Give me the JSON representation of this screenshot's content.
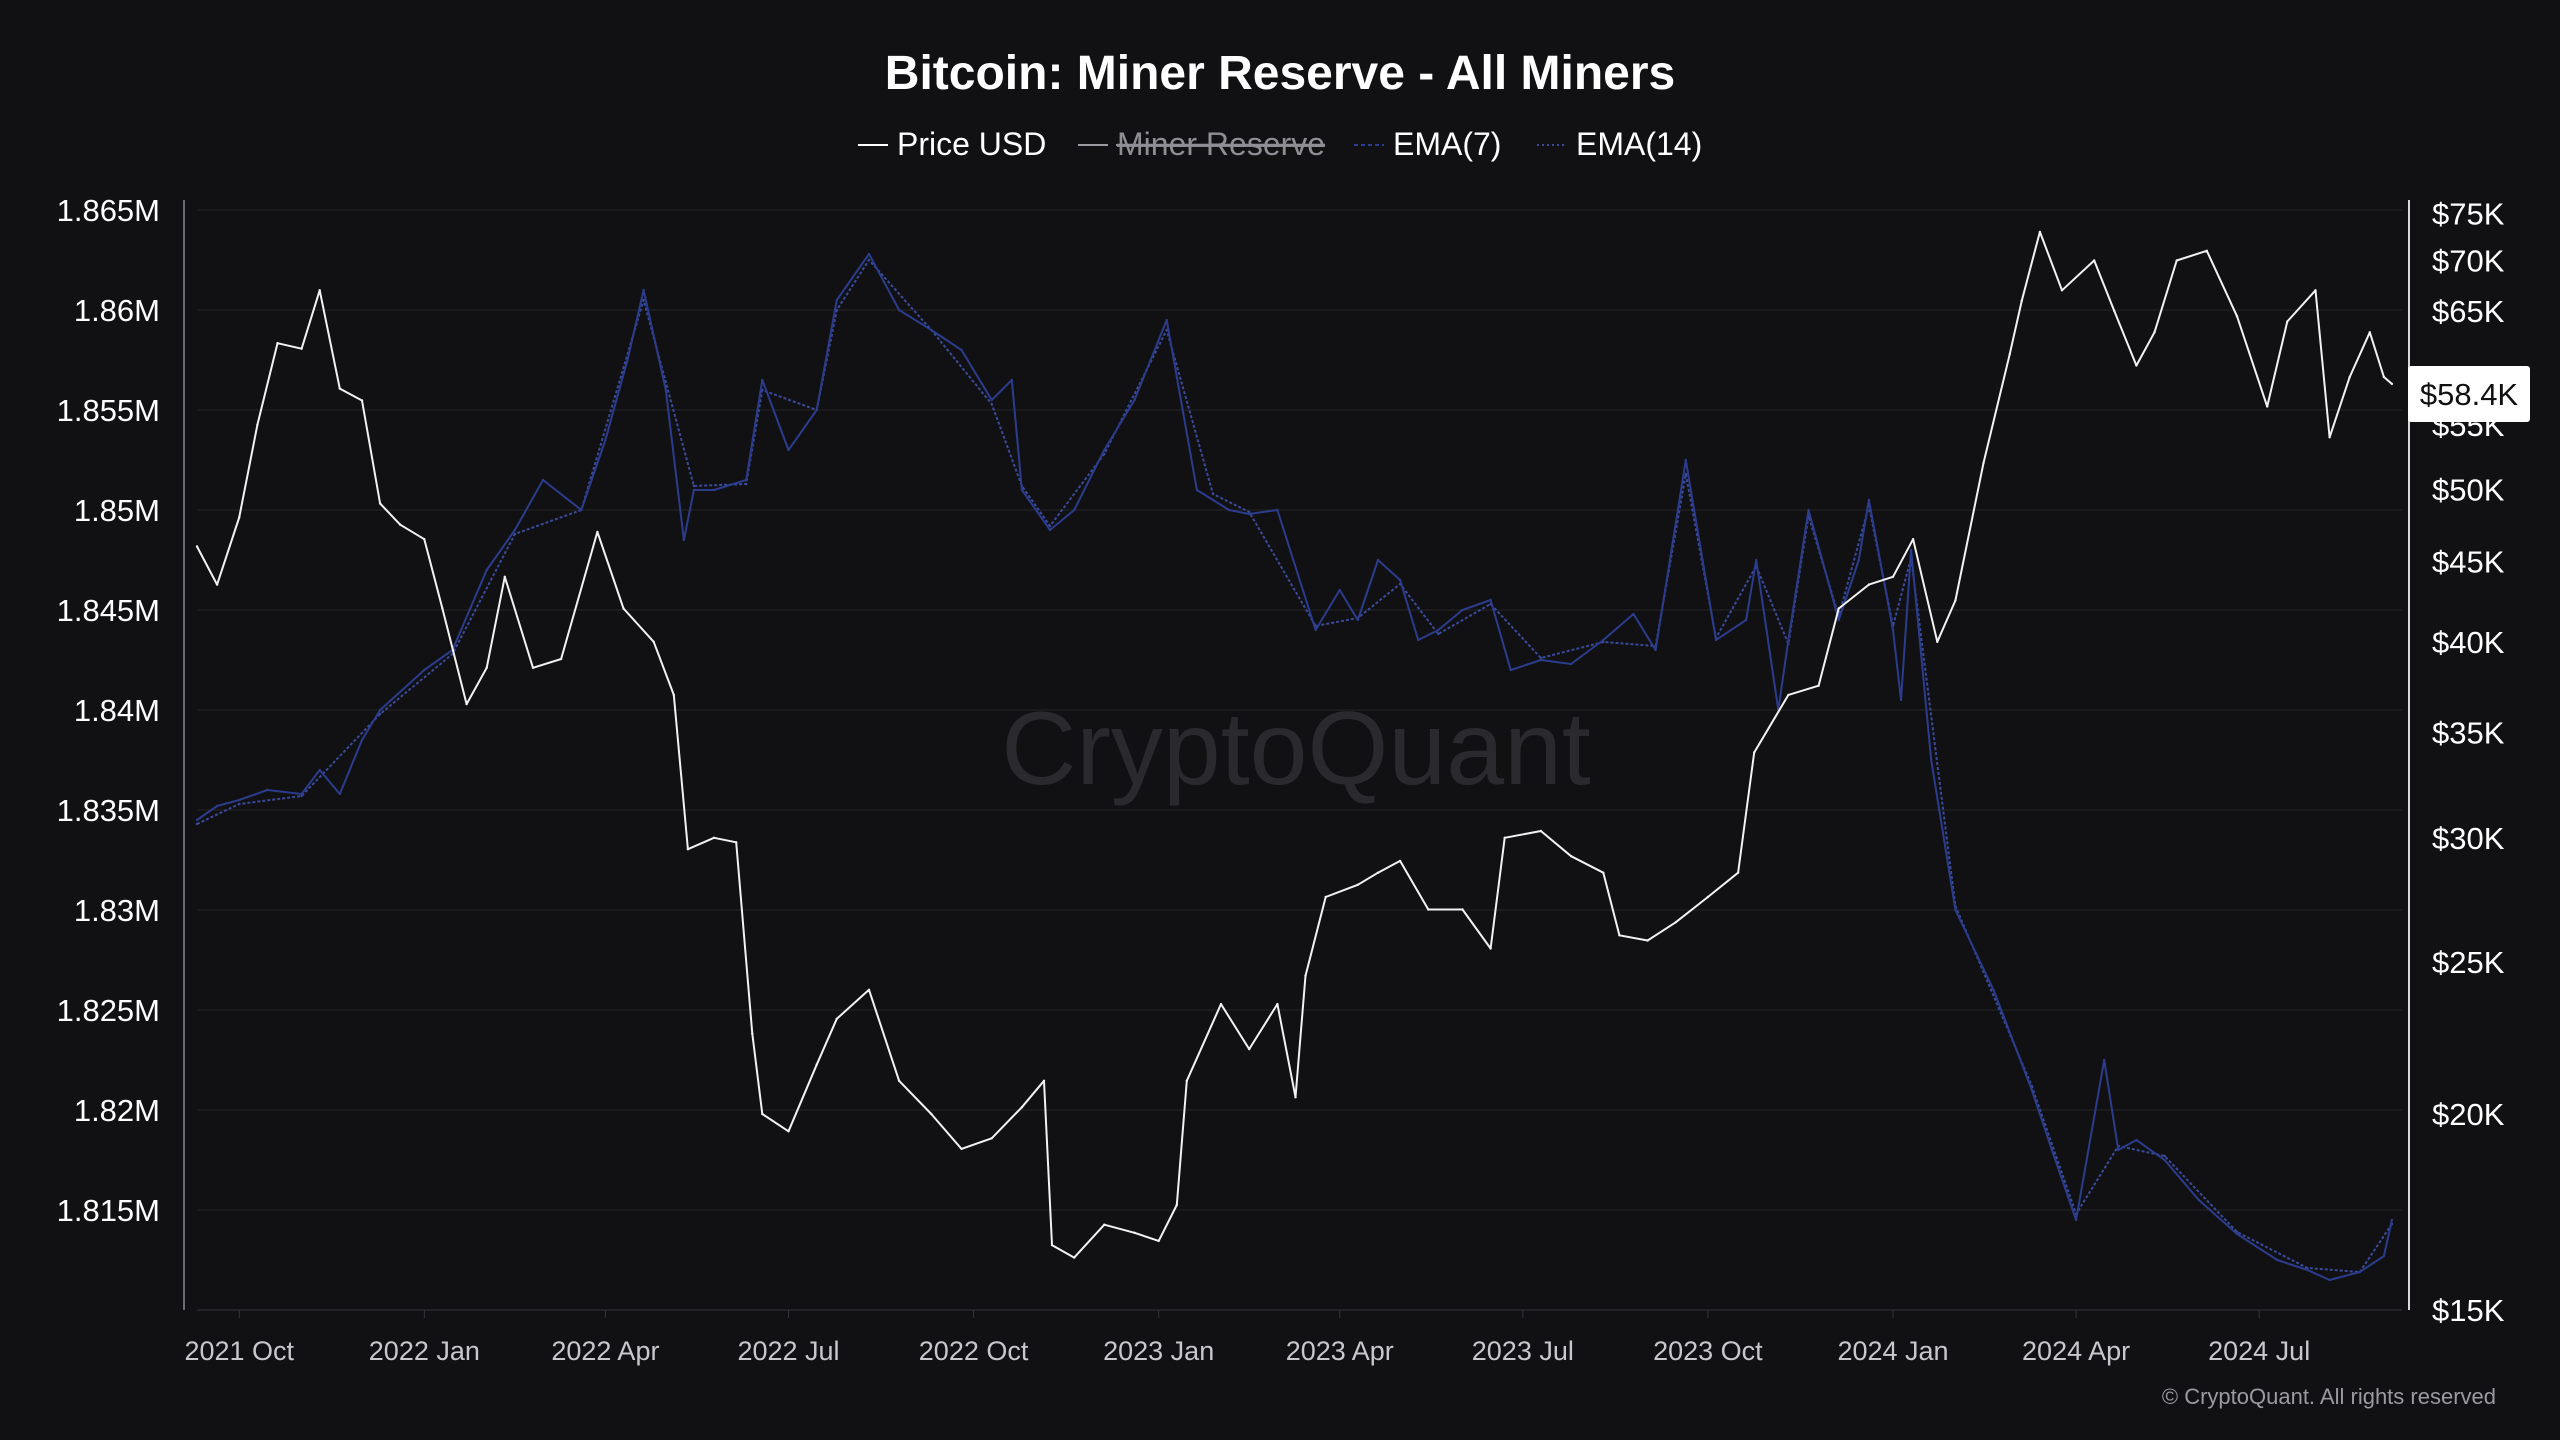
{
  "chart_data": {
    "type": "line",
    "title": "Bitcoin: Miner Reserve - All Miners",
    "legend": [
      {
        "name": "Price USD",
        "color": "#ffffff",
        "style": "solid",
        "hidden": false
      },
      {
        "name": "Miner Reserve",
        "color": "#9a9aa0",
        "style": "solid",
        "hidden": true
      },
      {
        "name": "EMA(7)",
        "color": "#2c3c8c",
        "style": "dashed",
        "hidden": false
      },
      {
        "name": "EMA(14)",
        "color": "#3a4a9a",
        "style": "dotted",
        "hidden": false
      }
    ],
    "x_ticks": [
      "2021 Oct",
      "2022 Jan",
      "2022 Apr",
      "2022 Jul",
      "2022 Oct",
      "2023 Jan",
      "2023 Apr",
      "2023 Jul",
      "2023 Oct",
      "2024 Jan",
      "2024 Apr",
      "2024 Jul"
    ],
    "x_range": [
      "2021-09-10",
      "2024-09-10"
    ],
    "y_left": {
      "label": "",
      "ticks": [
        "1.815M",
        "1.82M",
        "1.825M",
        "1.83M",
        "1.835M",
        "1.84M",
        "1.845M",
        "1.85M",
        "1.855M",
        "1.86M",
        "1.865M"
      ],
      "values": [
        1815000,
        1820000,
        1825000,
        1830000,
        1835000,
        1840000,
        1845000,
        1850000,
        1855000,
        1860000,
        1865000
      ],
      "range": [
        1810000,
        1865500
      ]
    },
    "y_right": {
      "label": "",
      "scale": "log",
      "ticks": [
        "$15K",
        "$20K",
        "$25K",
        "$30K",
        "$35K",
        "$40K",
        "$45K",
        "$50K",
        "$55K",
        "$65K",
        "$70K",
        "$75K"
      ],
      "values": [
        15000,
        20000,
        25000,
        30000,
        35000,
        40000,
        45000,
        50000,
        55000,
        65000,
        70000,
        75000
      ],
      "range": [
        15000,
        76500
      ]
    },
    "current_price_label": "$58.4K",
    "grid": true,
    "series": [
      {
        "name": "Price USD",
        "axis": "right",
        "x": [
          "2021-09-10",
          "2021-09-20",
          "2021-10-01",
          "2021-10-10",
          "2021-10-20",
          "2021-11-01",
          "2021-11-10",
          "2021-11-20",
          "2021-12-01",
          "2021-12-10",
          "2021-12-20",
          "2022-01-01",
          "2022-01-10",
          "2022-01-22",
          "2022-02-01",
          "2022-02-10",
          "2022-02-24",
          "2022-03-10",
          "2022-03-28",
          "2022-04-10",
          "2022-04-25",
          "2022-05-05",
          "2022-05-12",
          "2022-05-25",
          "2022-06-05",
          "2022-06-13",
          "2022-06-18",
          "2022-07-01",
          "2022-07-15",
          "2022-07-25",
          "2022-08-10",
          "2022-08-25",
          "2022-09-10",
          "2022-09-25",
          "2022-10-10",
          "2022-10-25",
          "2022-11-05",
          "2022-11-09",
          "2022-11-20",
          "2022-12-05",
          "2022-12-20",
          "2023-01-01",
          "2023-01-10",
          "2023-01-15",
          "2023-02-01",
          "2023-02-15",
          "2023-03-01",
          "2023-03-10",
          "2023-03-15",
          "2023-03-25",
          "2023-04-10",
          "2023-04-20",
          "2023-05-01",
          "2023-05-15",
          "2023-06-01",
          "2023-06-15",
          "2023-06-22",
          "2023-07-10",
          "2023-07-25",
          "2023-08-10",
          "2023-08-18",
          "2023-09-01",
          "2023-09-15",
          "2023-10-01",
          "2023-10-16",
          "2023-10-24",
          "2023-11-10",
          "2023-11-25",
          "2023-12-05",
          "2023-12-20",
          "2024-01-01",
          "2024-01-11",
          "2024-01-23",
          "2024-02-01",
          "2024-02-15",
          "2024-02-28",
          "2024-03-05",
          "2024-03-14",
          "2024-03-25",
          "2024-04-10",
          "2024-04-20",
          "2024-05-01",
          "2024-05-10",
          "2024-05-21",
          "2024-06-05",
          "2024-06-20",
          "2024-07-05",
          "2024-07-15",
          "2024-07-29",
          "2024-08-05",
          "2024-08-15",
          "2024-08-25",
          "2024-09-01",
          "2024-09-05"
        ],
        "values": [
          46000,
          43500,
          48000,
          55000,
          62000,
          61500,
          67000,
          58000,
          57000,
          49000,
          47500,
          46500,
          42000,
          36500,
          38500,
          44000,
          38500,
          39000,
          47000,
          42000,
          40000,
          37000,
          29500,
          30000,
          29800,
          22500,
          20000,
          19500,
          21500,
          23000,
          24000,
          21000,
          20000,
          19000,
          19300,
          20200,
          21000,
          16500,
          16200,
          17000,
          16800,
          16600,
          17500,
          21000,
          23500,
          22000,
          23500,
          20500,
          24500,
          27500,
          28000,
          28500,
          29000,
          27000,
          27000,
          25500,
          30000,
          30300,
          29200,
          28500,
          26000,
          25800,
          26500,
          27500,
          28500,
          34000,
          37000,
          37500,
          42000,
          43500,
          44000,
          46500,
          40000,
          42500,
          52000,
          61000,
          66000,
          73000,
          67000,
          70000,
          65000,
          60000,
          63000,
          70000,
          71000,
          64500,
          56500,
          64000,
          67000,
          54000,
          59000,
          63000,
          59000,
          58400
        ]
      },
      {
        "name": "EMA(7)",
        "axis": "left",
        "x": [
          "2021-09-10",
          "2021-09-20",
          "2021-10-01",
          "2021-10-15",
          "2021-11-01",
          "2021-11-10",
          "2021-11-20",
          "2021-12-01",
          "2021-12-10",
          "2022-01-01",
          "2022-01-15",
          "2022-02-01",
          "2022-02-15",
          "2022-03-01",
          "2022-03-20",
          "2022-04-01",
          "2022-04-12",
          "2022-04-20",
          "2022-05-01",
          "2022-05-10",
          "2022-05-15",
          "2022-05-25",
          "2022-06-10",
          "2022-06-18",
          "2022-07-01",
          "2022-07-15",
          "2022-07-25",
          "2022-08-10",
          "2022-08-25",
          "2022-09-10",
          "2022-09-25",
          "2022-10-10",
          "2022-10-20",
          "2022-10-25",
          "2022-11-08",
          "2022-11-20",
          "2022-12-05",
          "2022-12-20",
          "2023-01-05",
          "2023-01-20",
          "2023-01-28",
          "2023-02-05",
          "2023-02-15",
          "2023-03-01",
          "2023-03-20",
          "2023-04-01",
          "2023-04-10",
          "2023-04-20",
          "2023-05-01",
          "2023-05-10",
          "2023-05-20",
          "2023-06-01",
          "2023-06-15",
          "2023-06-25",
          "2023-07-10",
          "2023-07-25",
          "2023-08-10",
          "2023-08-25",
          "2023-09-05",
          "2023-09-20",
          "2023-10-05",
          "2023-10-20",
          "2023-10-25",
          "2023-11-05",
          "2023-11-10",
          "2023-11-20",
          "2023-12-05",
          "2023-12-15",
          "2023-12-20",
          "2024-01-01",
          "2024-01-05",
          "2024-01-10",
          "2024-01-20",
          "2024-02-01",
          "2024-02-20",
          "2024-03-10",
          "2024-03-20",
          "2024-04-01",
          "2024-04-15",
          "2024-04-22",
          "2024-05-01",
          "2024-05-15",
          "2024-06-01",
          "2024-06-20",
          "2024-07-10",
          "2024-07-25",
          "2024-08-05",
          "2024-08-20",
          "2024-09-01",
          "2024-09-05"
        ],
        "values": [
          1834500,
          1835200,
          1835500,
          1836000,
          1835800,
          1837000,
          1835800,
          1838500,
          1840000,
          1842000,
          1843000,
          1847000,
          1849000,
          1851500,
          1850000,
          1853500,
          1857500,
          1861000,
          1856000,
          1848500,
          1851000,
          1851000,
          1851500,
          1856500,
          1853000,
          1855000,
          1860500,
          1862800,
          1860000,
          1859000,
          1858000,
          1855500,
          1856500,
          1851000,
          1849000,
          1850000,
          1853000,
          1855500,
          1859500,
          1851000,
          1850500,
          1850000,
          1849800,
          1850000,
          1844000,
          1846000,
          1844500,
          1847500,
          1846500,
          1843500,
          1844000,
          1845000,
          1845500,
          1842000,
          1842500,
          1842300,
          1843500,
          1844800,
          1843000,
          1852500,
          1843500,
          1844500,
          1847500,
          1840000,
          1843500,
          1850000,
          1844500,
          1847500,
          1850500,
          1844000,
          1840500,
          1848000,
          1837500,
          1830000,
          1826000,
          1821000,
          1818000,
          1814500,
          1822500,
          1818000,
          1818500,
          1817500,
          1815500,
          1813800,
          1812500,
          1812000,
          1811500,
          1811900,
          1812700,
          1814500
        ]
      },
      {
        "name": "EMA(14)",
        "axis": "left",
        "x": [
          "2021-09-10",
          "2021-10-01",
          "2021-11-01",
          "2021-12-10",
          "2022-01-15",
          "2022-02-15",
          "2022-03-20",
          "2022-04-20",
          "2022-05-15",
          "2022-06-10",
          "2022-06-18",
          "2022-07-15",
          "2022-07-25",
          "2022-08-10",
          "2022-09-10",
          "2022-10-10",
          "2022-10-25",
          "2022-11-08",
          "2022-12-05",
          "2023-01-05",
          "2023-01-28",
          "2023-02-15",
          "2023-03-20",
          "2023-04-10",
          "2023-05-01",
          "2023-05-20",
          "2023-06-15",
          "2023-07-10",
          "2023-08-10",
          "2023-09-05",
          "2023-09-20",
          "2023-10-05",
          "2023-10-25",
          "2023-11-10",
          "2023-11-20",
          "2023-12-05",
          "2023-12-20",
          "2024-01-01",
          "2024-01-10",
          "2024-02-01",
          "2024-03-10",
          "2024-04-01",
          "2024-04-22",
          "2024-05-15",
          "2024-06-20",
          "2024-07-25",
          "2024-08-20",
          "2024-09-05"
        ],
        "values": [
          1834300,
          1835300,
          1835700,
          1839800,
          1842800,
          1848800,
          1850000,
          1860500,
          1851200,
          1851300,
          1856000,
          1855000,
          1860000,
          1862500,
          1859000,
          1855300,
          1851200,
          1849200,
          1852800,
          1859000,
          1850800,
          1849900,
          1844200,
          1844600,
          1846300,
          1843800,
          1845300,
          1842600,
          1843400,
          1843200,
          1851800,
          1843600,
          1847200,
          1843300,
          1849700,
          1844700,
          1850200,
          1844200,
          1847600,
          1830200,
          1821200,
          1814800,
          1818200,
          1817700,
          1813900,
          1812100,
          1811900,
          1814300
        ]
      }
    ]
  },
  "watermark": "CryptoQuant",
  "copyright": "© CryptoQuant. All rights reserved"
}
